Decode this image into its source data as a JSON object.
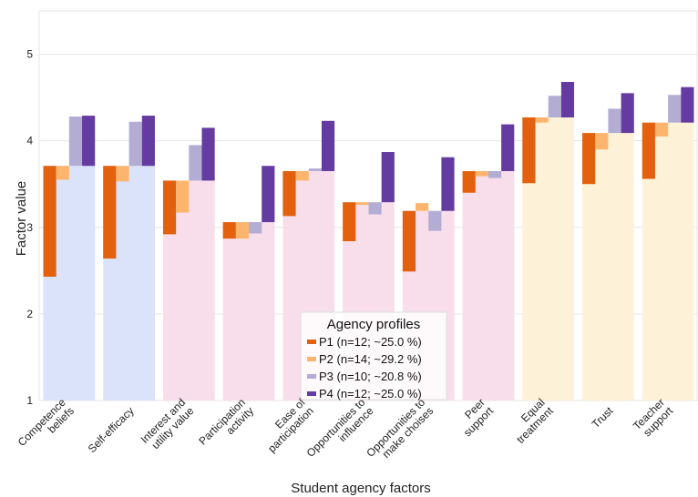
{
  "chart_data": {
    "type": "bar",
    "xlabel": "Student agency factors",
    "ylabel": "Factor value",
    "ylim": [
      1,
      5.5
    ],
    "yticks": [
      1,
      2,
      3,
      4,
      5
    ],
    "grid": true,
    "legend": {
      "title": "Agency profiles",
      "placement": "bottom-center"
    },
    "categories": [
      "Competence beliefs",
      "Self-efficacy",
      "Interest and utility value",
      "Participation activity",
      "Ease of participation",
      "Opportunities to influence",
      "Opportunities to make choises",
      "Peer support",
      "Equal treatment",
      "Trust",
      "Teacher support"
    ],
    "category_tick_lines": [
      [
        "Competence",
        "beliefs"
      ],
      [
        "Self-efficacy"
      ],
      [
        "Interest and",
        "utility value"
      ],
      [
        "Participation",
        "activity"
      ],
      [
        "Ease of",
        "participation"
      ],
      [
        "Opportunities to",
        "influence"
      ],
      [
        "Opportunities to",
        "make choises"
      ],
      [
        "Peer",
        "support"
      ],
      [
        "Equal",
        "treatment"
      ],
      [
        "Trust"
      ],
      [
        "Teacher",
        "support"
      ]
    ],
    "category_groups": [
      0,
      0,
      1,
      1,
      1,
      1,
      1,
      1,
      2,
      2,
      2
    ],
    "group_colors": [
      "#dae3fa",
      "#f8deea",
      "#fdf2d7"
    ],
    "averages": [
      3.71,
      3.71,
      3.54,
      3.06,
      3.65,
      3.29,
      3.19,
      3.65,
      4.27,
      4.09,
      4.21
    ],
    "series": [
      {
        "name": "P1 (n=12; ~25.0 %)",
        "color": "#e3600e",
        "values": [
          2.43,
          2.64,
          2.92,
          2.87,
          3.13,
          2.84,
          2.49,
          3.4,
          3.51,
          3.5,
          3.56
        ]
      },
      {
        "name": "P2 (n=14; ~29.2 %)",
        "color": "#fdb56e",
        "values": [
          3.55,
          3.53,
          3.17,
          2.87,
          3.54,
          3.26,
          3.28,
          3.59,
          4.21,
          3.9,
          4.05
        ]
      },
      {
        "name": "P3 (n=10; ~20.8 %)",
        "color": "#b3acd3",
        "values": [
          4.28,
          4.22,
          3.95,
          2.93,
          3.68,
          3.15,
          2.96,
          3.57,
          4.52,
          4.37,
          4.53
        ]
      },
      {
        "name": "P4 (n=12; ~25.0 %)",
        "color": "#643ba0",
        "values": [
          4.29,
          4.29,
          4.15,
          3.71,
          4.23,
          3.87,
          3.81,
          4.19,
          4.68,
          4.55,
          4.62
        ]
      }
    ]
  }
}
